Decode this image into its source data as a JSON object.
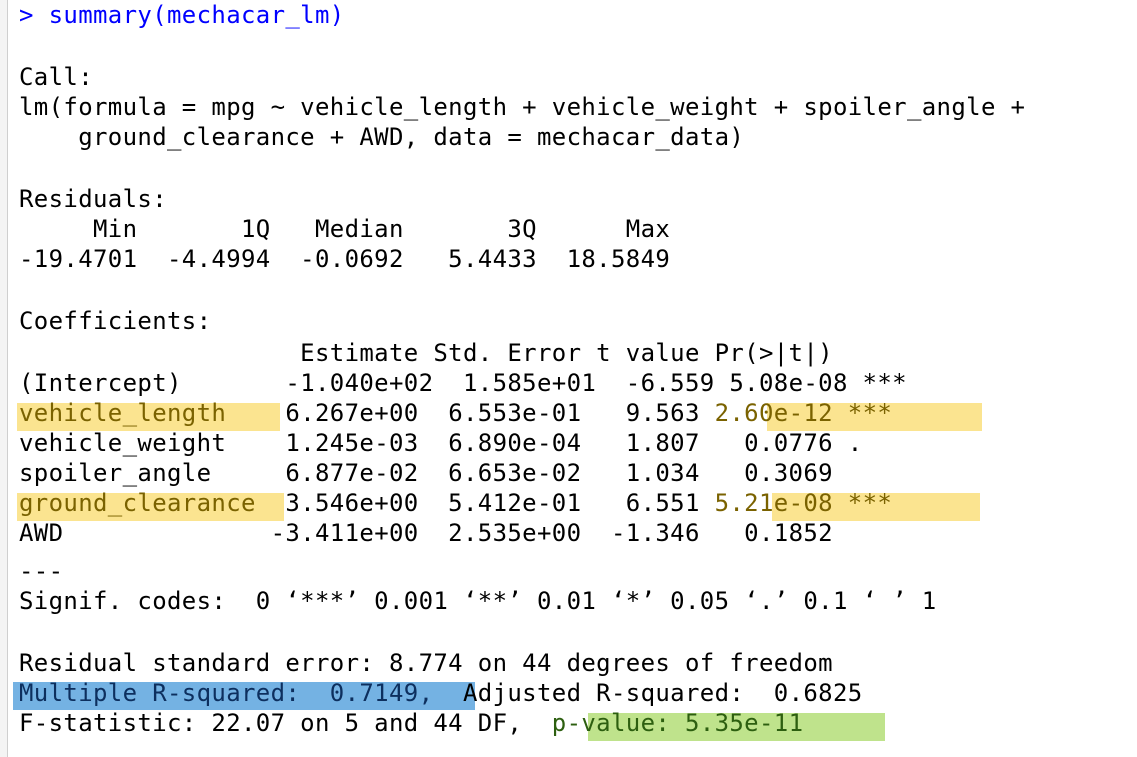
{
  "console": {
    "command": "> summary(mechacar_lm)",
    "call_header": "Call:",
    "call_line1": "lm(formula = mpg ~ vehicle_length + vehicle_weight + spoiler_angle +",
    "call_line2": "    ground_clearance + AWD, data = mechacar_data)",
    "residuals_header": "Residuals:",
    "residuals_labels": "     Min       1Q   Median       3Q      Max",
    "residuals_values": "-19.4701  -4.4994  -0.0692   5.4433  18.5849",
    "coefficients_header": "Coefficients:",
    "coef_columns": "                   Estimate Std. Error t value Pr(>|t|)",
    "rows": [
      {
        "label": "(Intercept)",
        "values": "       -1.040e+02  1.585e+01  -6.559 5.08e-08 ***"
      },
      {
        "label": "vehicle_length",
        "values": "    6.267e+00  6.553e-01   9.563 ",
        "p": "2.60e-12 ***"
      },
      {
        "label": "vehicle_weight",
        "values": "    1.245e-03  6.890e-04   1.807   0.0776 ."
      },
      {
        "label": "spoiler_angle",
        "values": "     6.877e-02  6.653e-02   1.034   0.3069"
      },
      {
        "label": "ground_clearance",
        "values": "  3.546e+00  5.412e-01   6.551 ",
        "p": "5.21e-08 ***"
      },
      {
        "label": "AWD",
        "values": "              -3.411e+00  2.535e+00  -1.346   0.1852"
      }
    ],
    "separator": "---",
    "signif_codes": "Signif. codes:  0 ‘***’ 0.001 ‘**’ 0.01 ‘*’ 0.05 ‘.’ 0.1 ‘ ’ 1",
    "rse": "Residual standard error: 8.774 on 44 degrees of freedom",
    "r_squared": "Multiple R-squared:  0.7149,",
    "adj_r_squared": "\tAdjusted R-squared:  0.6825",
    "f_stat": "F-statistic: 22.07 on 5 and 44 DF,  ",
    "p_value": "p-value: 5.35e-11"
  },
  "colors": {
    "prompt": "#0000ff",
    "highlight_yellow": "#fbe490",
    "highlight_blue": "#74b2e3",
    "highlight_green": "#bfe38c"
  }
}
